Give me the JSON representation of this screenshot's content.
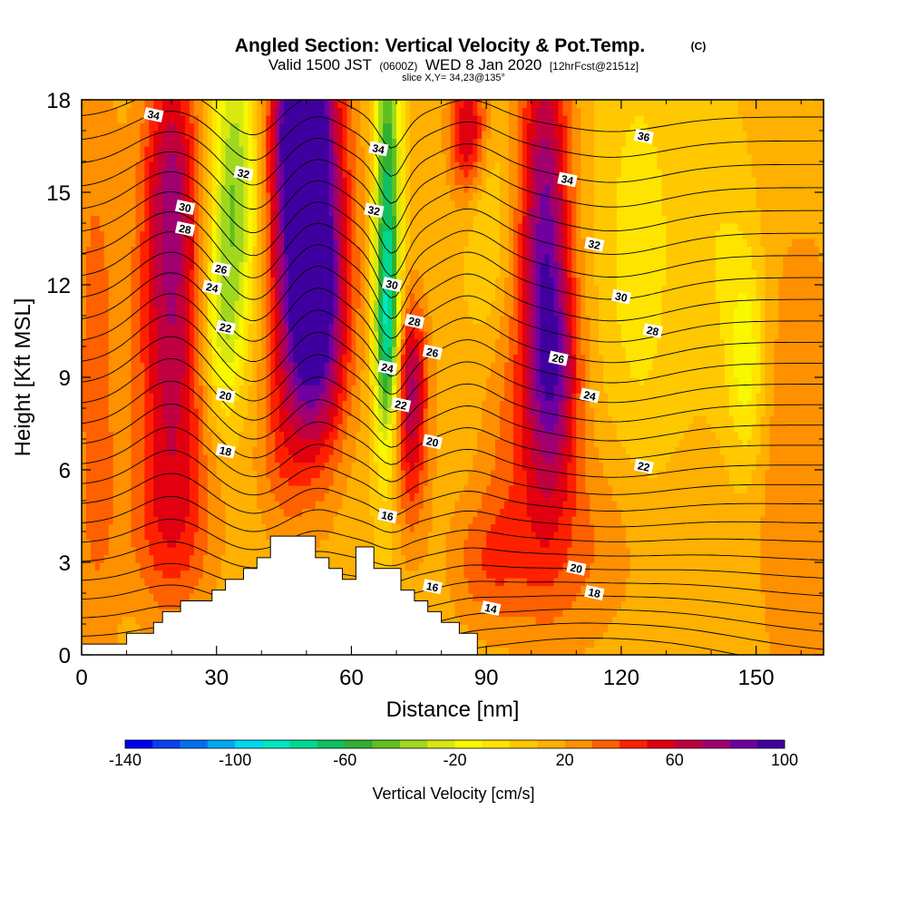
{
  "chart_data": {
    "type": "heatmap",
    "title": "Angled Section: Vertical Velocity & Pot.Temp.",
    "title_mark": "(C)",
    "subtitle_parts": [
      "Valid 1500 JST",
      "(0600Z)",
      "WED 8 Jan 2020",
      "[12hrFcst@2151z]"
    ],
    "subtitle2": "slice X,Y= 34,23@135°",
    "xlabel": "Distance [nm]",
    "ylabel": "Height [Kft MSL]",
    "xlim": [
      0,
      165
    ],
    "ylim": [
      0,
      18
    ],
    "x_ticks": [
      "0",
      "30",
      "60",
      "90",
      "120",
      "150"
    ],
    "x_tick_values": [
      0,
      30,
      60,
      90,
      120,
      150
    ],
    "y_ticks": [
      "0",
      "3",
      "6",
      "9",
      "12",
      "15",
      "18"
    ],
    "y_tick_values": [
      0,
      3,
      6,
      9,
      12,
      15,
      18
    ],
    "grid": false,
    "colorbar": {
      "label": "Vertical Velocity [cm/s]",
      "tick_labels": [
        "-140",
        "-100",
        "-60",
        "-20",
        "20",
        "60",
        "100"
      ],
      "tick_values": [
        -140,
        -100,
        -60,
        -20,
        20,
        60,
        100
      ],
      "min": -140,
      "max": 100,
      "step": 10,
      "colors": [
        "#0000f0",
        "#0a40f0",
        "#0070f0",
        "#00a8f0",
        "#00d8f0",
        "#00e6c0",
        "#00d890",
        "#10c060",
        "#30b030",
        "#60c020",
        "#a0d820",
        "#d8e810",
        "#f8f800",
        "#ffe400",
        "#ffc800",
        "#ffb000",
        "#ff9000",
        "#ff6000",
        "#ff2000",
        "#e00010",
        "#c00040",
        "#a00070",
        "#7000a0",
        "#4000a0"
      ]
    },
    "terrain_profile": {
      "x": [
        0,
        10,
        10,
        16,
        16,
        18,
        18,
        22,
        22,
        29,
        29,
        32,
        32,
        36,
        36,
        39,
        39,
        42,
        42,
        52,
        52,
        55,
        55,
        58,
        58,
        61,
        61,
        65,
        65,
        71,
        71,
        74,
        74,
        77,
        77,
        80,
        80,
        84,
        84,
        88,
        88
      ],
      "height_kft": [
        0.35,
        0.35,
        0.7,
        0.7,
        1.05,
        1.05,
        1.4,
        1.4,
        1.75,
        1.75,
        2.1,
        2.1,
        2.45,
        2.45,
        2.8,
        2.8,
        3.15,
        3.15,
        3.85,
        3.85,
        3.15,
        3.15,
        2.8,
        2.8,
        2.45,
        2.45,
        3.5,
        3.5,
        2.8,
        2.8,
        2.1,
        2.1,
        1.75,
        1.75,
        1.4,
        1.4,
        1.05,
        1.05,
        0.7,
        0.7,
        0.35
      ]
    },
    "velocity_features": [
      {
        "x": 20,
        "y": 10.5,
        "sx": 5.5,
        "sy": 5,
        "w": 55
      },
      {
        "x": 20,
        "y": 16,
        "sx": 4,
        "sy": 2.5,
        "w": 30
      },
      {
        "x": 34,
        "y": 15,
        "sx": 4,
        "sy": 3.5,
        "w": -55
      },
      {
        "x": 31,
        "y": 10.5,
        "sx": 3,
        "sy": 2,
        "w": -30
      },
      {
        "x": 50,
        "y": 14.5,
        "sx": 6,
        "sy": 4.5,
        "w": 85
      },
      {
        "x": 52,
        "y": 10.5,
        "sx": 5,
        "sy": 3,
        "w": 50
      },
      {
        "x": 49,
        "y": 17.5,
        "sx": 4,
        "sy": 2,
        "w": 60
      },
      {
        "x": 68,
        "y": 14,
        "sx": 2,
        "sy": 5,
        "w": -80
      },
      {
        "x": 68,
        "y": 10,
        "sx": 2,
        "sy": 2,
        "w": -40
      },
      {
        "x": 73,
        "y": 7.5,
        "sx": 3,
        "sy": 2.5,
        "w": 45
      },
      {
        "x": 73,
        "y": 9.5,
        "sx": 2.5,
        "sy": 1.5,
        "w": 25
      },
      {
        "x": 86,
        "y": 17,
        "sx": 3,
        "sy": 1.5,
        "w": 50
      },
      {
        "x": 90,
        "y": 14,
        "sx": 3,
        "sy": 2.5,
        "w": -15
      },
      {
        "x": 103,
        "y": 13.5,
        "sx": 4,
        "sy": 5.5,
        "w": 70
      },
      {
        "x": 106,
        "y": 9,
        "sx": 4,
        "sy": 2.5,
        "w": 35
      },
      {
        "x": 124,
        "y": 13,
        "sx": 6,
        "sy": 5,
        "w": -18
      },
      {
        "x": 148,
        "y": 9.5,
        "sx": 3,
        "sy": 2.5,
        "w": -30
      },
      {
        "x": 142,
        "y": 13,
        "sx": 5,
        "sy": 3,
        "w": -12
      },
      {
        "x": 3,
        "y": 9,
        "sx": 4,
        "sy": 8,
        "w": 22
      },
      {
        "x": 160,
        "y": 6,
        "sx": 8,
        "sy": 6,
        "w": 18
      },
      {
        "x": 108,
        "y": 3.5,
        "sx": 12,
        "sy": 2.5,
        "w": 20
      },
      {
        "x": 95,
        "y": 7.5,
        "sx": 5,
        "sy": 3,
        "w": 15
      },
      {
        "x": 44,
        "y": 6.5,
        "sx": 4,
        "sy": 2,
        "w": 15
      },
      {
        "x": 20,
        "y": 4,
        "sx": 8,
        "sy": 2,
        "w": 18
      },
      {
        "x": 90,
        "y": 3,
        "sx": 6,
        "sy": 1.5,
        "w": 20
      }
    ],
    "theta_levels": [
      10,
      11,
      12,
      13,
      14,
      15,
      16,
      17,
      18,
      19,
      20,
      21,
      22,
      23,
      24,
      25,
      26,
      27,
      28,
      29,
      30,
      31,
      32,
      33,
      34,
      35,
      36,
      37
    ],
    "theta_labels": [
      {
        "text": "34",
        "x": 16,
        "y": 17.5
      },
      {
        "text": "32",
        "x": 36,
        "y": 15.6
      },
      {
        "text": "30",
        "x": 23,
        "y": 14.5
      },
      {
        "text": "28",
        "x": 23,
        "y": 13.8
      },
      {
        "text": "26",
        "x": 31,
        "y": 12.5
      },
      {
        "text": "24",
        "x": 29,
        "y": 11.9
      },
      {
        "text": "22",
        "x": 32,
        "y": 10.6
      },
      {
        "text": "20",
        "x": 32,
        "y": 8.4
      },
      {
        "text": "18",
        "x": 32,
        "y": 6.6
      },
      {
        "text": "34",
        "x": 66,
        "y": 16.4
      },
      {
        "text": "32",
        "x": 65,
        "y": 14.4
      },
      {
        "text": "30",
        "x": 69,
        "y": 12.0
      },
      {
        "text": "28",
        "x": 74,
        "y": 10.8
      },
      {
        "text": "26",
        "x": 78,
        "y": 9.8
      },
      {
        "text": "24",
        "x": 68,
        "y": 9.3
      },
      {
        "text": "22",
        "x": 71,
        "y": 8.1
      },
      {
        "text": "20",
        "x": 78,
        "y": 6.9
      },
      {
        "text": "16",
        "x": 68,
        "y": 4.5
      },
      {
        "text": "16",
        "x": 78,
        "y": 2.2
      },
      {
        "text": "14",
        "x": 91,
        "y": 1.5
      },
      {
        "text": "34",
        "x": 108,
        "y": 15.4
      },
      {
        "text": "36",
        "x": 125,
        "y": 16.8
      },
      {
        "text": "32",
        "x": 114,
        "y": 13.3
      },
      {
        "text": "30",
        "x": 120,
        "y": 11.6
      },
      {
        "text": "28",
        "x": 127,
        "y": 10.5
      },
      {
        "text": "26",
        "x": 106,
        "y": 9.6
      },
      {
        "text": "24",
        "x": 113,
        "y": 8.4
      },
      {
        "text": "22",
        "x": 125,
        "y": 6.1
      },
      {
        "text": "20",
        "x": 110,
        "y": 2.8
      },
      {
        "text": "18",
        "x": 114,
        "y": 2.0
      }
    ]
  }
}
